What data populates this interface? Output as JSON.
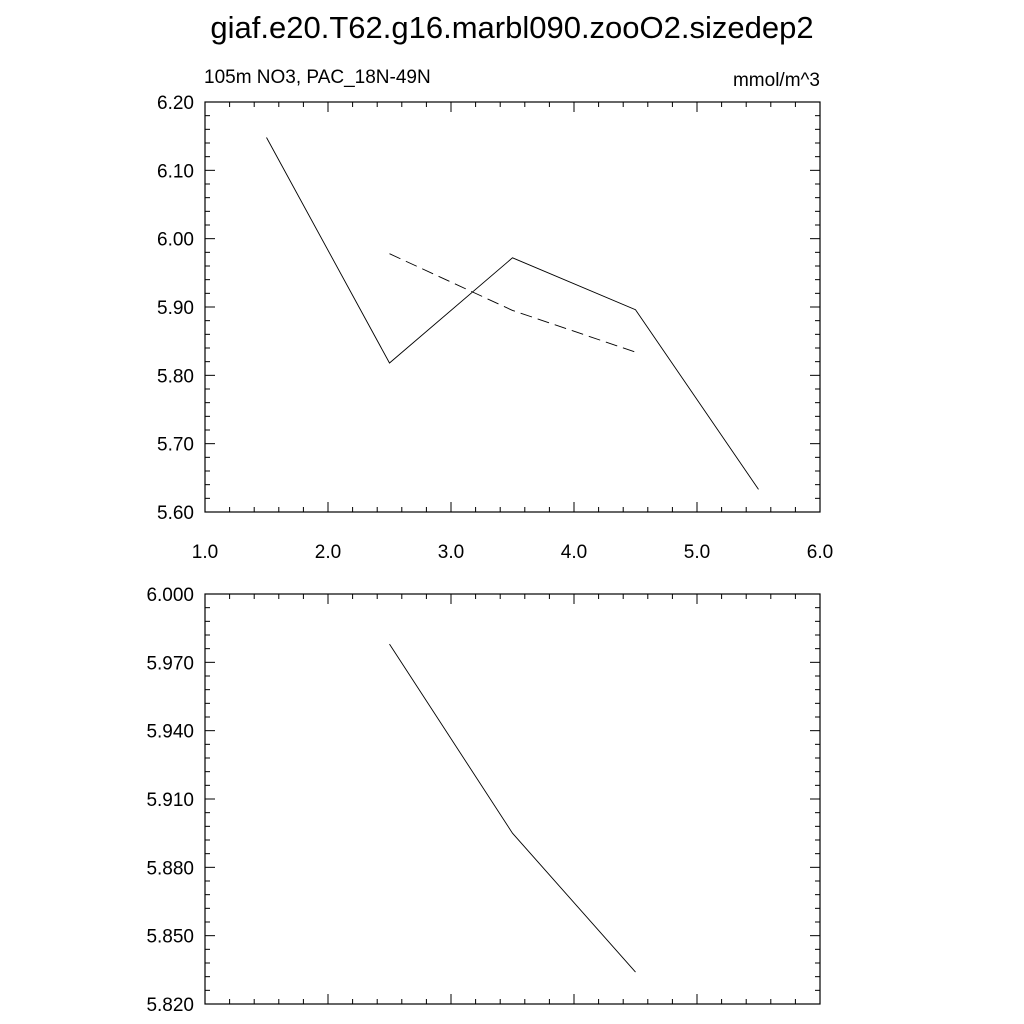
{
  "figure_title": "giaf.e20.T62.g16.marbl090.zooO2.sizedep2",
  "chart_data": [
    {
      "type": "line",
      "title_left": "105m NO3, PAC_18N-49N",
      "title_right": "mmol/m^3",
      "xlim": [
        1.0,
        6.0
      ],
      "ylim": [
        5.6,
        6.2
      ],
      "xticks": [
        "1.0",
        "2.0",
        "3.0",
        "4.0",
        "5.0",
        "6.0"
      ],
      "yticks": [
        "5.60",
        "5.70",
        "5.80",
        "5.90",
        "6.00",
        "6.10",
        "6.20"
      ],
      "series": [
        {
          "style": "solid",
          "x": [
            1.5,
            2.5,
            3.5,
            4.5,
            5.5
          ],
          "y": [
            6.148,
            5.818,
            5.972,
            5.896,
            5.633
          ]
        },
        {
          "style": "dashed",
          "x": [
            2.5,
            3.5,
            4.5
          ],
          "y": [
            5.978,
            5.895,
            5.834
          ]
        }
      ]
    },
    {
      "type": "line",
      "xlim": [
        1.0,
        6.0
      ],
      "ylim": [
        5.82,
        6.0
      ],
      "yticks": [
        "5.820",
        "5.850",
        "5.880",
        "5.910",
        "5.940",
        "5.970",
        "6.000"
      ],
      "series": [
        {
          "style": "solid",
          "x": [
            2.5,
            3.5,
            4.5
          ],
          "y": [
            5.978,
            5.895,
            5.834
          ]
        }
      ]
    }
  ]
}
